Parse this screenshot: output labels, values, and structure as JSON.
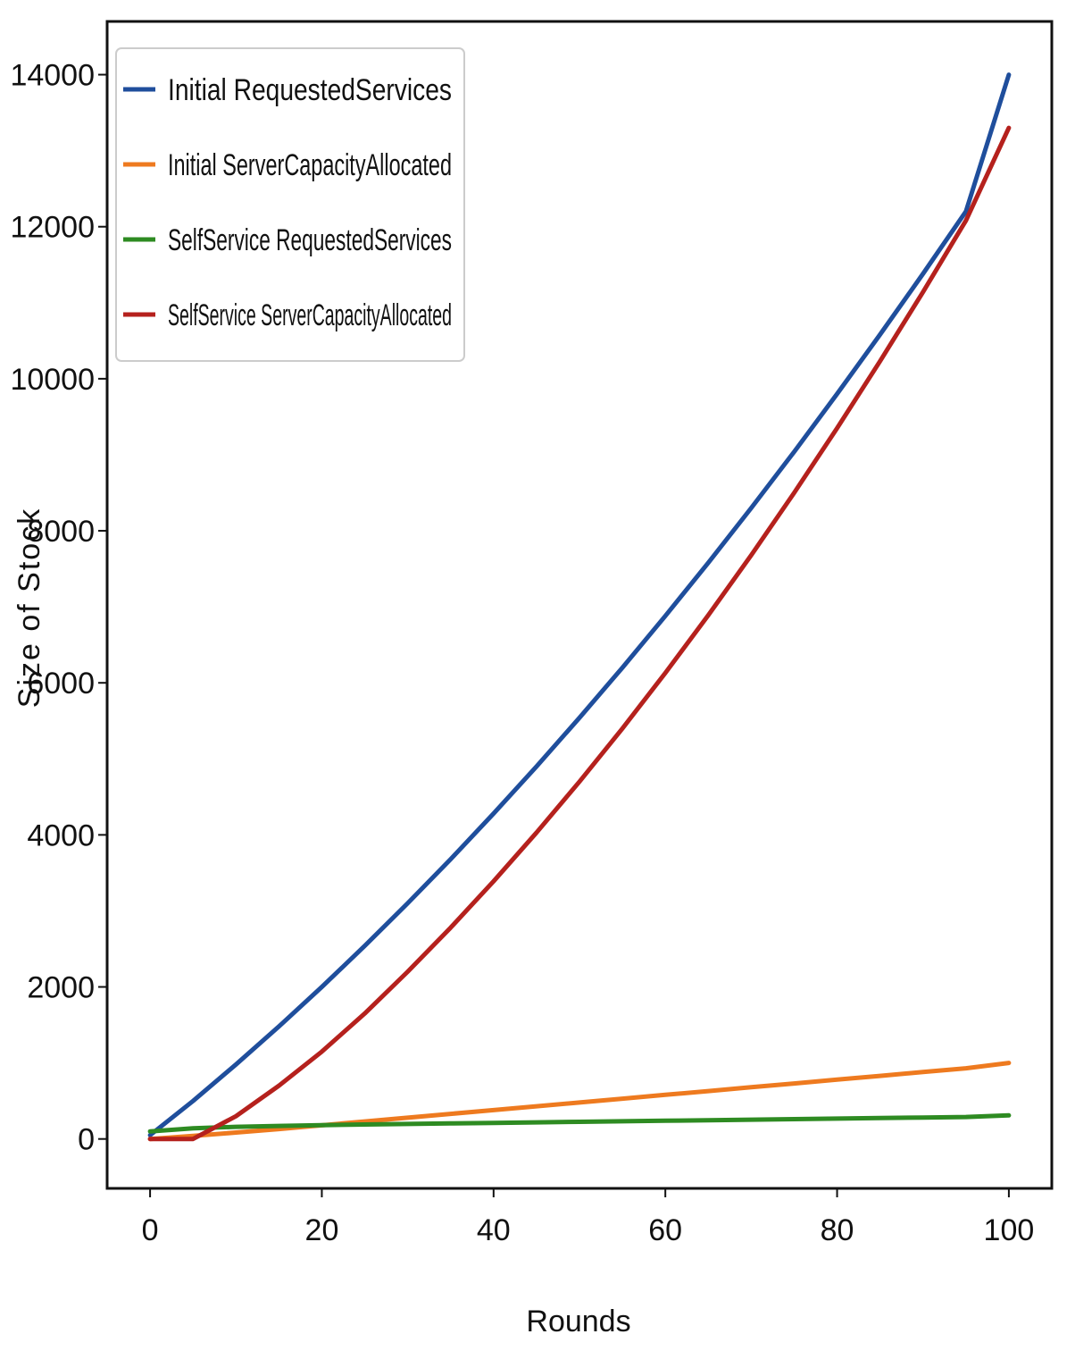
{
  "chart_data": {
    "type": "line",
    "title": "",
    "xlabel": "Rounds",
    "ylabel": "Size of Stock",
    "xlim": [
      -5,
      105
    ],
    "ylim": [
      -650,
      14700
    ],
    "xticks": [
      0,
      20,
      40,
      60,
      80,
      100
    ],
    "yticks": [
      0,
      2000,
      4000,
      6000,
      8000,
      10000,
      12000,
      14000
    ],
    "grid": false,
    "legend_position": "top-left",
    "x": [
      0,
      5,
      10,
      15,
      20,
      25,
      30,
      35,
      40,
      45,
      50,
      55,
      60,
      65,
      70,
      75,
      80,
      85,
      90,
      95,
      100
    ],
    "series": [
      {
        "name": "Initial RequestedServices",
        "color": "#1f4e9c",
        "values": [
          50,
          500,
          980,
          1480,
          2000,
          2540,
          3100,
          3680,
          4280,
          4900,
          5540,
          6200,
          6880,
          7580,
          8300,
          9040,
          9800,
          10580,
          11380,
          12200,
          14000
        ]
      },
      {
        "name": "Initial ServerCapacityAllocated",
        "color": "#ee7a1f",
        "values": [
          0,
          40,
          85,
          130,
          180,
          230,
          280,
          330,
          380,
          430,
          480,
          530,
          580,
          630,
          680,
          730,
          780,
          830,
          880,
          930,
          1000
        ]
      },
      {
        "name": "SelfService RequestedServices",
        "color": "#2e8b22",
        "values": [
          100,
          140,
          160,
          172,
          182,
          190,
          198,
          205,
          212,
          219,
          226,
          233,
          240,
          247,
          254,
          261,
          268,
          275,
          282,
          289,
          310
        ]
      },
      {
        "name": "SelfService ServerCapacityAllocated",
        "color": "#b5211d",
        "values": [
          0,
          0,
          300,
          700,
          1150,
          1650,
          2200,
          2780,
          3390,
          4030,
          4700,
          5400,
          6130,
          6890,
          7680,
          8500,
          9350,
          10230,
          11140,
          12080,
          13300
        ]
      }
    ]
  }
}
